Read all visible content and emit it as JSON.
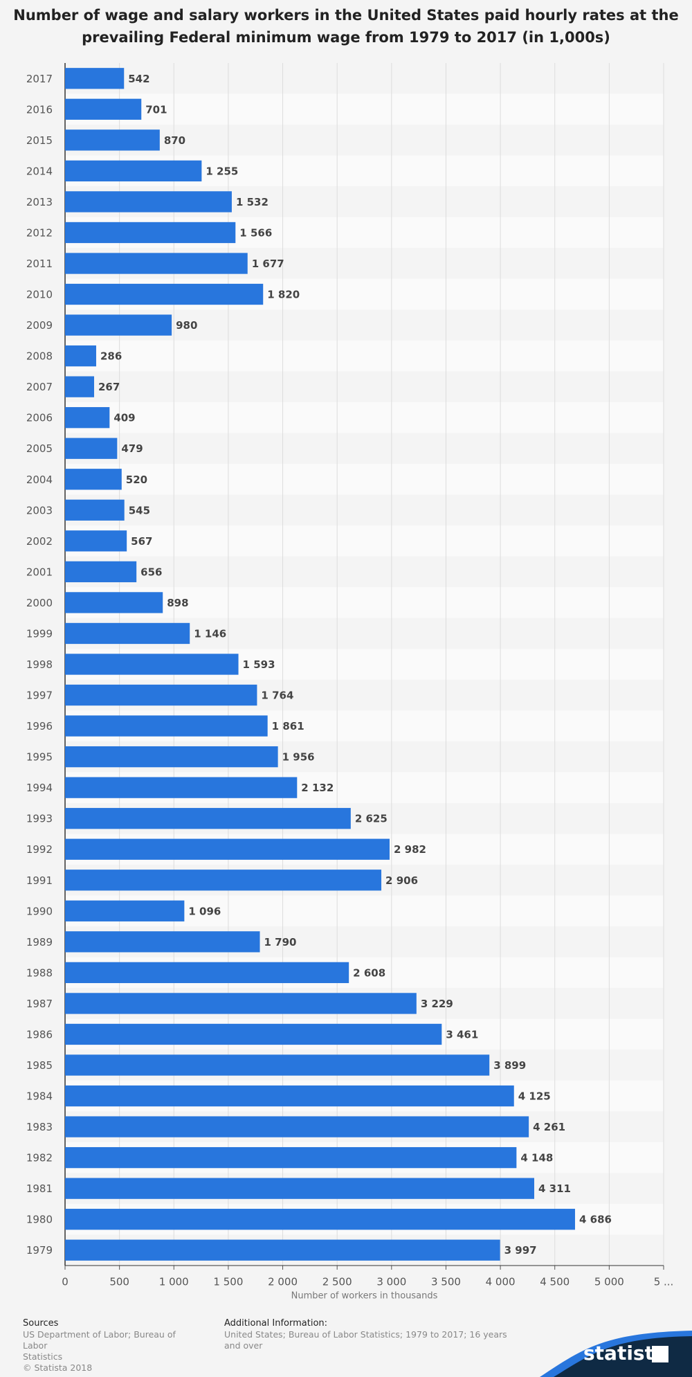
{
  "chart_data": {
    "type": "bar",
    "orientation": "horizontal",
    "title": "Number of wage and salary workers in the United States paid hourly rates at the prevailing Federal minimum wage from 1979 to 2017 (in 1,000s)",
    "x_label": "Number of workers in thousands",
    "categories": [
      "2017",
      "2016",
      "2015",
      "2014",
      "2013",
      "2012",
      "2011",
      "2010",
      "2009",
      "2008",
      "2007",
      "2006",
      "2005",
      "2004",
      "2003",
      "2002",
      "2001",
      "2000",
      "1999",
      "1998",
      "1997",
      "1996",
      "1995",
      "1994",
      "1993",
      "1992",
      "1991",
      "1990",
      "1989",
      "1988",
      "1987",
      "1986",
      "1985",
      "1984",
      "1983",
      "1982",
      "1981",
      "1980",
      "1979"
    ],
    "values": [
      542,
      701,
      870,
      1255,
      1532,
      1566,
      1677,
      1820,
      980,
      286,
      267,
      409,
      479,
      520,
      545,
      567,
      656,
      898,
      1146,
      1593,
      1764,
      1861,
      1956,
      2132,
      2625,
      2982,
      2906,
      1096,
      1790,
      2608,
      3229,
      3461,
      3899,
      4125,
      4261,
      4148,
      4311,
      4686,
      3997
    ],
    "value_labels": [
      "542",
      "701",
      "870",
      "1 255",
      "1 532",
      "1 566",
      "1 677",
      "1 820",
      "980",
      "286",
      "267",
      "409",
      "479",
      "520",
      "545",
      "567",
      "656",
      "898",
      "1 146",
      "1 593",
      "1 764",
      "1 861",
      "1 956",
      "2 132",
      "2 625",
      "2 982",
      "2 906",
      "1 096",
      "1 790",
      "2 608",
      "3 229",
      "3 461",
      "3 899",
      "4 125",
      "4 261",
      "4 148",
      "4 311",
      "4 686",
      "3 997"
    ],
    "color": "#2876dd",
    "xlim": [
      0,
      5500
    ],
    "xticks": [
      0,
      500,
      {
        "value": 1000,
        "label": "1 000"
      },
      {
        "value": 1500,
        "label": "1 500"
      },
      {
        "value": 2000,
        "label": "2 000"
      },
      {
        "value": 2500,
        "label": "2 500"
      },
      {
        "value": 3000,
        "label": "3 000"
      },
      {
        "value": 3500,
        "label": "3 500"
      },
      {
        "value": 4000,
        "label": "4 000"
      },
      {
        "value": 4500,
        "label": "4 500"
      },
      {
        "value": 5000,
        "label": "5 000"
      },
      {
        "value": 5500,
        "label": "5 ..."
      }
    ],
    "grid": true
  },
  "footer": {
    "sources_title": "Sources",
    "sources": [
      "US Department of Labor; Bureau of Labor",
      "Statistics",
      "© Statista 2018"
    ],
    "info_title": "Additional Information:",
    "info": [
      "United States; Bureau of Labor Statistics; 1979 to 2017; 16 years",
      "and over"
    ],
    "logo": "statista"
  }
}
